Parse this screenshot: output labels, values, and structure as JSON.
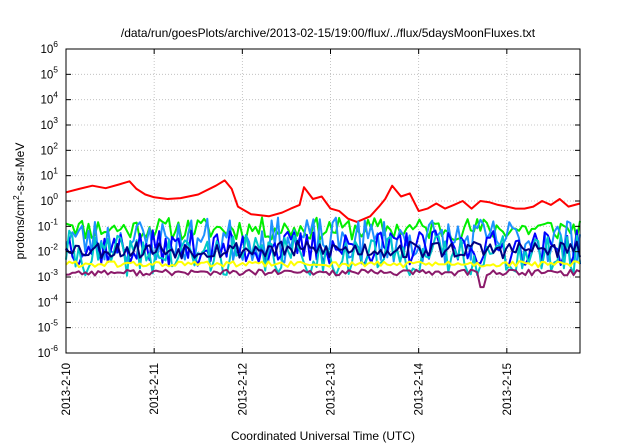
{
  "chart_data": {
    "type": "line",
    "title": "/data/run/goesPlots/archive/2013-02-15/19:00/flux/../flux/5daysMoonFluxes.txt",
    "xlabel": "Coordinated Universal Time (UTC)",
    "ylabel": {
      "base": "protons/cm",
      "sup": "2",
      "rest": "-s-sr-MeV"
    },
    "y_scale": "log",
    "ylim_exponents": [
      -6,
      6
    ],
    "y_ticks": [
      {
        "base": "10",
        "exp": "-6"
      },
      {
        "base": "10",
        "exp": "-5"
      },
      {
        "base": "10",
        "exp": "-4"
      },
      {
        "base": "10",
        "exp": "-3"
      },
      {
        "base": "10",
        "exp": "-2"
      },
      {
        "base": "10",
        "exp": "-1"
      },
      {
        "base": "10",
        "exp": "0"
      },
      {
        "base": "10",
        "exp": "1"
      },
      {
        "base": "10",
        "exp": "2"
      },
      {
        "base": "10",
        "exp": "3"
      },
      {
        "base": "10",
        "exp": "4"
      },
      {
        "base": "10",
        "exp": "5"
      },
      {
        "base": "10",
        "exp": "6"
      }
    ],
    "x_ticks": [
      "2013-2-10",
      "2013-2-11",
      "2013-2-12",
      "2013-2-13",
      "2013-2-14",
      "2013-2-15"
    ],
    "x_range_days": [
      0,
      5.83
    ],
    "grid": true,
    "legend": "none",
    "series": [
      {
        "color": "#ff0000",
        "x": [
          0,
          0.15,
          0.3,
          0.45,
          0.6,
          0.72,
          0.8,
          0.9,
          1.0,
          1.15,
          1.3,
          1.5,
          1.7,
          1.8,
          1.88,
          1.95,
          2.1,
          2.3,
          2.45,
          2.55,
          2.65,
          2.7,
          2.8,
          2.9,
          3.0,
          3.1,
          3.2,
          3.3,
          3.45,
          3.55,
          3.62,
          3.7,
          3.8,
          3.9,
          4.0,
          4.1,
          4.2,
          4.3,
          4.4,
          4.5,
          4.6,
          4.7,
          4.8,
          4.9,
          5.0,
          5.1,
          5.2,
          5.3,
          5.4,
          5.5,
          5.6,
          5.7,
          5.83
        ],
        "y": [
          2.2,
          3.0,
          4.0,
          3.2,
          4.5,
          6.0,
          3.0,
          1.8,
          1.4,
          1.2,
          1.3,
          1.8,
          4.0,
          6.5,
          3.0,
          0.6,
          0.3,
          0.25,
          0.35,
          0.5,
          0.7,
          3.5,
          1.2,
          1.5,
          0.5,
          0.4,
          0.2,
          0.15,
          0.25,
          0.6,
          1.2,
          4.0,
          1.5,
          2.0,
          0.4,
          0.5,
          0.8,
          0.5,
          0.7,
          1.0,
          0.5,
          1.0,
          0.9,
          0.7,
          0.6,
          0.5,
          0.5,
          0.6,
          1.0,
          0.7,
          1.2,
          0.6,
          0.8
        ]
      },
      {
        "color": "#00ee00",
        "level": 0.08,
        "start": 0.22,
        "jitter": 0.45,
        "seed": 11
      },
      {
        "color": "#1e90ff",
        "level": 0.028,
        "start": 0.06,
        "jitter": 0.9,
        "seed": 23
      },
      {
        "color": "#0000ff",
        "level": 0.014,
        "start": 0.025,
        "jitter": 0.7,
        "seed": 37
      },
      {
        "color": "#00c8c8",
        "level": 0.007,
        "start": 0.012,
        "jitter": 0.8,
        "seed": 41
      },
      {
        "color": "#000080",
        "level": 0.012,
        "start": 0.02,
        "jitter": 0.35,
        "seed": 53
      },
      {
        "color": "#ffff00",
        "level": 0.0032,
        "start": 0.0035,
        "jitter": 0.12,
        "seed": 61
      },
      {
        "color": "#8b1a6b",
        "level": 0.0015,
        "start": 0.0014,
        "jitter": 0.12,
        "seed": 77,
        "dip_x": 4.72,
        "dip_y": 0.0004
      }
    ]
  }
}
